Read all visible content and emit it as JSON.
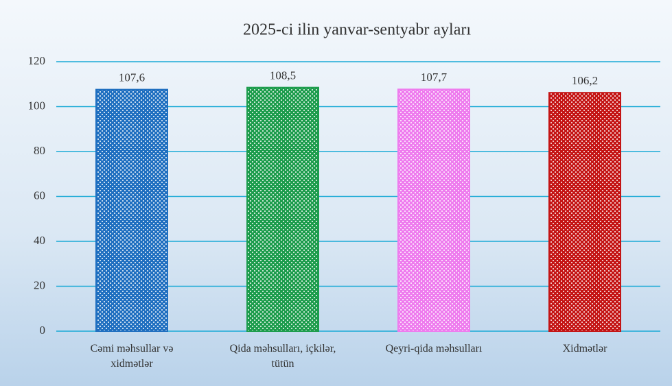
{
  "chart_data": {
    "type": "bar",
    "title": "2025-ci ilin yanvar-sentyabr ayları",
    "categories": [
      "Cəmi məhsullar  və xidmətlər",
      "Qida məhsulları, içkilər, tütün",
      "Qeyri-qida məhsulları",
      "Xidmətlər"
    ],
    "values": [
      107.6,
      108.5,
      107.7,
      106.2
    ],
    "value_labels": [
      "107,6",
      "108,5",
      "107,7",
      "106,2"
    ],
    "colors": [
      "#1f6fc0",
      "#1c9c4c",
      "#ee7cee",
      "#c41414"
    ],
    "ylim": [
      0,
      120
    ],
    "yticks": [
      0,
      20,
      40,
      60,
      80,
      100,
      120
    ],
    "grid": true
  }
}
